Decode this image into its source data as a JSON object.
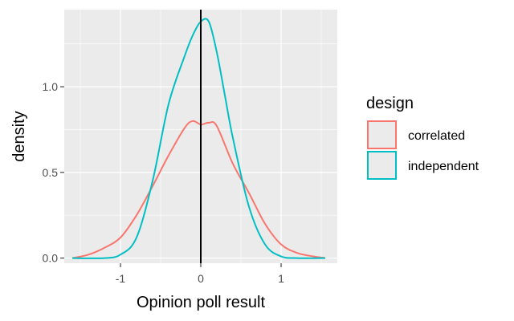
{
  "chart_data": {
    "type": "area",
    "xlabel": "Opinion poll result",
    "ylabel": "density",
    "xlim": [
      -1.7,
      1.7
    ],
    "ylim": [
      -0.03,
      1.45
    ],
    "x_ticks": [
      -1,
      0,
      1
    ],
    "x_tick_labels": [
      "-1",
      "0",
      "1"
    ],
    "y_ticks": [
      0,
      0.5,
      1
    ],
    "y_tick_labels": [
      "0.0",
      "0.5",
      "1.0"
    ],
    "grid": true,
    "reference_line": {
      "x": 0,
      "color": "#000000"
    },
    "legend": {
      "title": "design",
      "position": "right",
      "entries": [
        "correlated",
        "independent"
      ]
    },
    "series": [
      {
        "name": "correlated",
        "color": "#F8766D",
        "points": [
          [
            -1.6,
            0.0
          ],
          [
            -1.4,
            0.02
          ],
          [
            -1.2,
            0.06
          ],
          [
            -1.0,
            0.12
          ],
          [
            -0.8,
            0.25
          ],
          [
            -0.6,
            0.42
          ],
          [
            -0.4,
            0.6
          ],
          [
            -0.2,
            0.76
          ],
          [
            -0.1,
            0.8
          ],
          [
            0.0,
            0.78
          ],
          [
            0.1,
            0.79
          ],
          [
            0.2,
            0.77
          ],
          [
            0.4,
            0.55
          ],
          [
            0.6,
            0.38
          ],
          [
            0.8,
            0.2
          ],
          [
            1.0,
            0.08
          ],
          [
            1.2,
            0.03
          ],
          [
            1.4,
            0.01
          ],
          [
            1.55,
            0.0
          ]
        ]
      },
      {
        "name": "independent",
        "color": "#00BFC4",
        "points": [
          [
            -1.6,
            0.0
          ],
          [
            -1.2,
            0.0
          ],
          [
            -1.0,
            0.02
          ],
          [
            -0.8,
            0.12
          ],
          [
            -0.6,
            0.45
          ],
          [
            -0.4,
            0.9
          ],
          [
            -0.2,
            1.18
          ],
          [
            -0.1,
            1.3
          ],
          [
            0.0,
            1.38
          ],
          [
            0.1,
            1.38
          ],
          [
            0.2,
            1.2
          ],
          [
            0.3,
            0.95
          ],
          [
            0.4,
            0.7
          ],
          [
            0.6,
            0.3
          ],
          [
            0.8,
            0.08
          ],
          [
            1.0,
            0.01
          ],
          [
            1.2,
            0.0
          ],
          [
            1.55,
            0.0
          ]
        ]
      }
    ]
  }
}
